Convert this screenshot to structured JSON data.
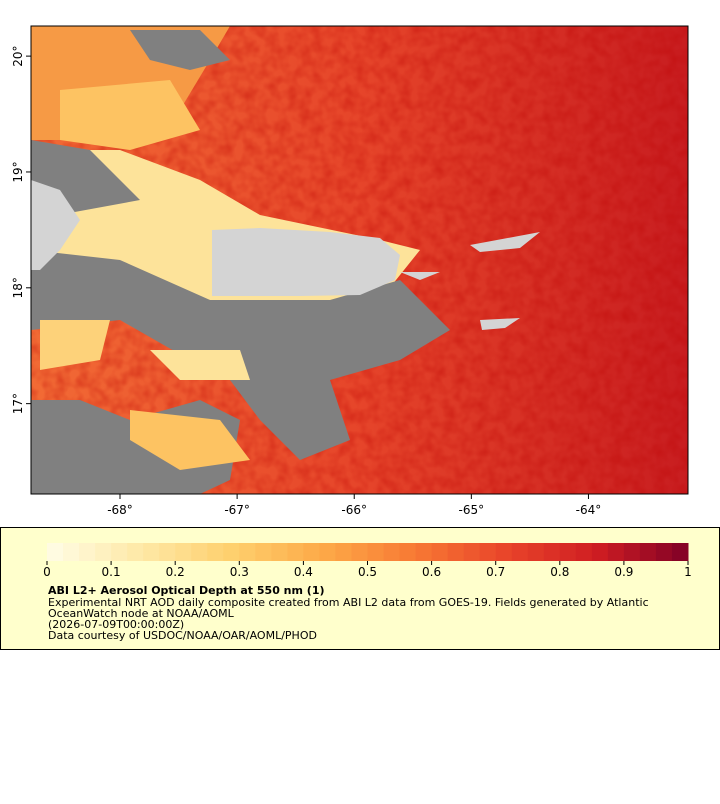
{
  "map": {
    "xlim": [
      -68.76,
      -63.15
    ],
    "ylim": [
      16.22,
      20.26
    ],
    "xticks": [
      {
        "value": -68,
        "label": "-68°"
      },
      {
        "value": -67,
        "label": "-67°"
      },
      {
        "value": -66,
        "label": "-66°"
      },
      {
        "value": -65,
        "label": "-65°"
      },
      {
        "value": -64,
        "label": "-64°"
      }
    ],
    "yticks": [
      {
        "value": 17,
        "label": "17°"
      },
      {
        "value": 18,
        "label": "18°"
      },
      {
        "value": 19,
        "label": "19°"
      },
      {
        "value": 20,
        "label": "20°"
      }
    ]
  },
  "colorbar": {
    "lim": [
      0,
      1
    ],
    "ticks": [
      0,
      0.1,
      0.2,
      0.3,
      0.4,
      0.5,
      0.6,
      0.7,
      0.8,
      0.9,
      1
    ],
    "colors": [
      "#fffde6",
      "#fee9a8",
      "#fed06e",
      "#fdaa48",
      "#f87a34",
      "#e9452a",
      "#cf1d22",
      "#800026"
    ],
    "title": "ABI L2+ Aerosol Optical Depth at 550 nm (1)",
    "lines": [
      "Experimental NRT AOD daily composite created from ABI L2 data from GOES-19. Fields generated by Atlantic",
      "OceanWatch node at NOAA/AOML",
      "(2026-07-09T00:00:00Z)",
      "Data courtesy of USDOC/NOAA/OAR/AOML/PHOD"
    ]
  }
}
